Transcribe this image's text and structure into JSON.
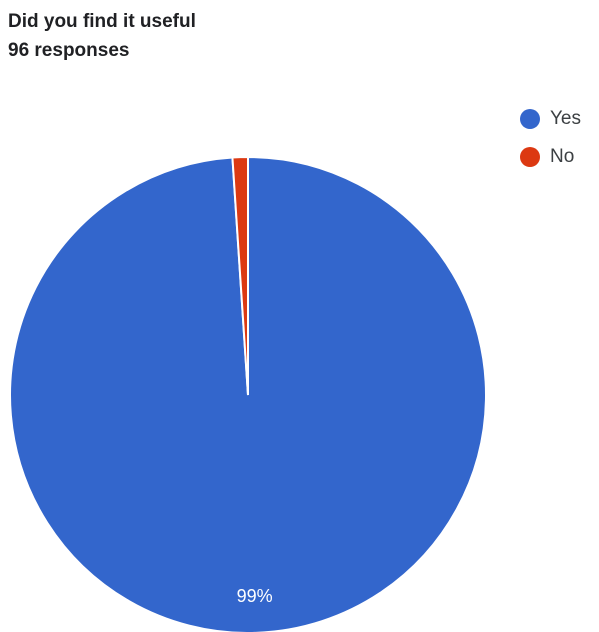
{
  "title": "Did you find it useful",
  "subtitle": "96 responses",
  "chart_data": {
    "type": "pie",
    "title": "Did you find it useful",
    "subtitle": "96 responses",
    "categories": [
      "Yes",
      "No"
    ],
    "values": [
      95,
      1
    ],
    "total": 96,
    "colors": [
      "#3366cc",
      "#dc3912"
    ],
    "slice_labels": [
      "99%",
      ""
    ],
    "legend_position": "top-right"
  }
}
